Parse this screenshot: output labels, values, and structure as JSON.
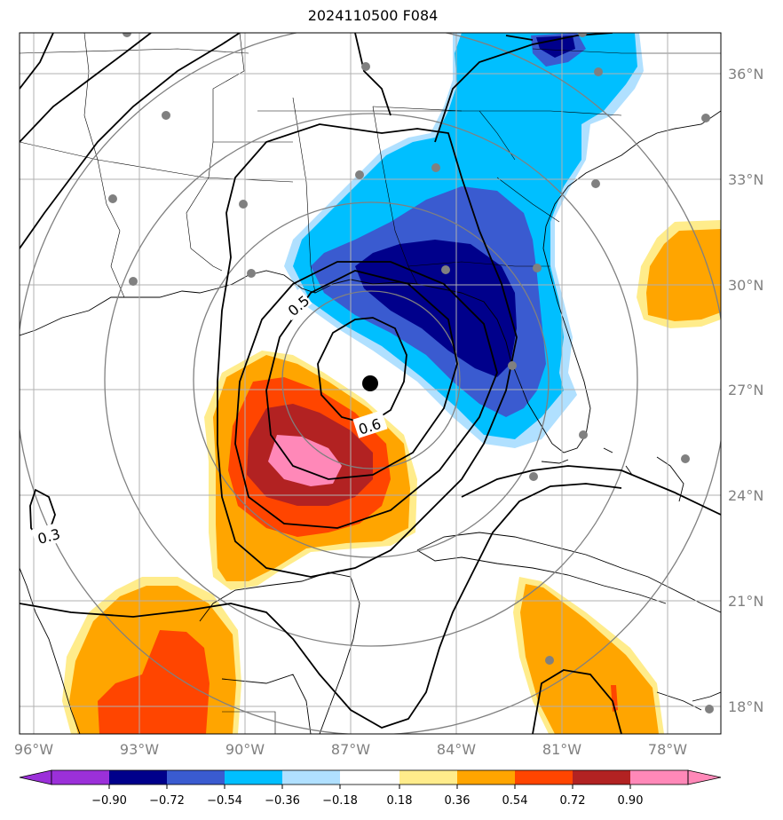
{
  "title": "2024110500 F084",
  "map": {
    "lon_ticks": [
      "96°W",
      "93°W",
      "90°W",
      "87°W",
      "84°W",
      "81°W",
      "78°W"
    ],
    "lat_ticks": [
      "36°N",
      "33°N",
      "30°N",
      "27°N",
      "24°N",
      "21°N",
      "18°N"
    ],
    "contour_labels": [
      "0.5",
      "0.6",
      "0.3"
    ],
    "storm_center": {
      "lon": -86.5,
      "lat": 27.2
    }
  },
  "colorbar": {
    "labels": [
      "−0.90",
      "−0.72",
      "−0.54",
      "−0.36",
      "−0.18",
      "0.18",
      "0.36",
      "0.54",
      "0.72",
      "0.90"
    ],
    "colors": [
      "#9b30d9",
      "#00008b",
      "#3a5bd0",
      "#00bfff",
      "#b0e0ff",
      "#ffffff",
      "#ffec8b",
      "#ffa500",
      "#ff4500",
      "#b22222",
      "#ff88b8"
    ]
  },
  "colors": {
    "neg_090": "#00008b",
    "neg_072": "#3a5bd0",
    "neg_054": "#00bfff",
    "neg_036": "#b0e0ff",
    "pos_036": "#ffec8b",
    "pos_054": "#ffa500",
    "pos_072": "#ff4500",
    "pos_090": "#b22222",
    "pos_max": "#ff88b8"
  }
}
